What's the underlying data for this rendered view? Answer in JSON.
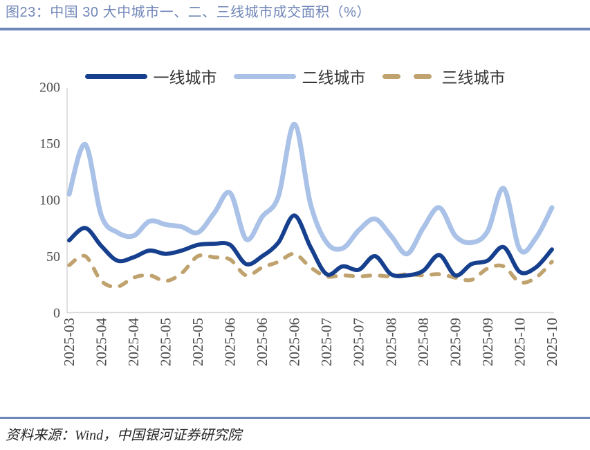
{
  "header": {
    "title": "图23：中国 30 大中城市一、二、三线城市成交面积（%）"
  },
  "footer": {
    "source": "资料来源：Wind，中国银河证券研究院"
  },
  "colors": {
    "accent_rule": "#6d87b8",
    "title_text": "#7186b8",
    "axis_line": "#d9d9d9",
    "tick_text": "#4d4d4d",
    "tier1": "#16408e",
    "tier2": "#aac2e8",
    "tier3": "#bfa26e"
  },
  "chart_data": {
    "type": "line",
    "title": "中国 30 大中城市一、二、三线城市成交面积（%）",
    "ylabel": "",
    "xlabel": "",
    "ylim": [
      0,
      200
    ],
    "y_ticks": [
      0,
      50,
      100,
      150,
      200
    ],
    "grid": false,
    "legend_position": "top",
    "x_label_every": 2,
    "x_labels": [
      "2025-03",
      "2025-04",
      "2025-04",
      "2025-05",
      "2025-05",
      "2025-06",
      "2025-06",
      "2025-06",
      "2025-07",
      "2025-07",
      "2025-08",
      "2025-08",
      "2025-09",
      "2025-09",
      "2025-10",
      "2025-10"
    ],
    "series": [
      {
        "name": "一线城市",
        "color": "#16408e",
        "style": "solid",
        "values": [
          64,
          75,
          59,
          46,
          49,
          55,
          52,
          55,
          60,
          61,
          60,
          43,
          50,
          62,
          86,
          58,
          34,
          41,
          38,
          50,
          34,
          33,
          37,
          51,
          33,
          43,
          46,
          58,
          36,
          40,
          56
        ]
      },
      {
        "name": "二线城市",
        "color": "#aac2e8",
        "style": "solid",
        "values": [
          105,
          149,
          86,
          71,
          68,
          81,
          78,
          76,
          71,
          88,
          106,
          65,
          85,
          103,
          167,
          96,
          62,
          57,
          73,
          83,
          68,
          52,
          75,
          93,
          68,
          62,
          72,
          110,
          56,
          66,
          93
        ]
      },
      {
        "name": "三线城市",
        "color": "#bfa26e",
        "style": "dashed",
        "values": [
          42,
          50,
          28,
          23,
          31,
          33,
          28,
          35,
          50,
          49,
          47,
          33,
          40,
          45,
          52,
          40,
          32,
          33,
          32,
          33,
          32,
          34,
          33,
          34,
          31,
          29,
          39,
          41,
          27,
          31,
          45
        ]
      }
    ]
  }
}
